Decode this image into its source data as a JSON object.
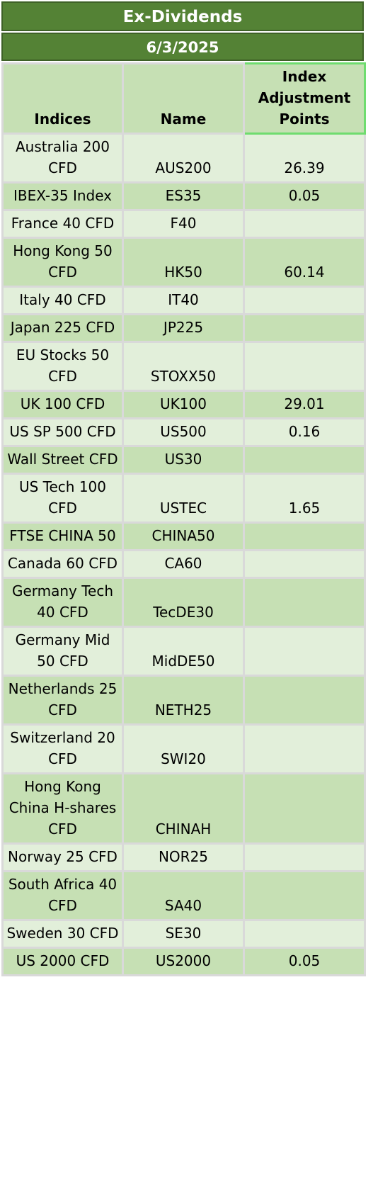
{
  "header": {
    "title": "Ex-Dividends",
    "date": "6/3/2025"
  },
  "columns": {
    "indices": "Indices",
    "name": "Name",
    "adjustment": "Index Adjustment Points"
  },
  "rows": [
    {
      "index": "Australia 200 CFD",
      "name": "AUS200",
      "points": "26.39"
    },
    {
      "index": "IBEX-35 Index",
      "name": "ES35",
      "points": "0.05"
    },
    {
      "index": "France 40 CFD",
      "name": "F40",
      "points": ""
    },
    {
      "index": "Hong Kong 50 CFD",
      "name": "HK50",
      "points": "60.14"
    },
    {
      "index": "Italy 40 CFD",
      "name": "IT40",
      "points": ""
    },
    {
      "index": "Japan 225 CFD",
      "name": "JP225",
      "points": ""
    },
    {
      "index": "EU Stocks 50 CFD",
      "name": "STOXX50",
      "points": ""
    },
    {
      "index": "UK 100 CFD",
      "name": "UK100",
      "points": "29.01"
    },
    {
      "index": "US SP 500 CFD",
      "name": "US500",
      "points": "0.16"
    },
    {
      "index": "Wall Street CFD",
      "name": "US30",
      "points": ""
    },
    {
      "index": "US Tech 100 CFD",
      "name": "USTEC",
      "points": "1.65"
    },
    {
      "index": "FTSE CHINA 50",
      "name": "CHINA50",
      "points": ""
    },
    {
      "index": "Canada 60 CFD",
      "name": "CA60",
      "points": ""
    },
    {
      "index": "Germany Tech 40 CFD",
      "name": "TecDE30",
      "points": ""
    },
    {
      "index": "Germany Mid 50 CFD",
      "name": "MidDE50",
      "points": ""
    },
    {
      "index": "Netherlands 25 CFD",
      "name": "NETH25",
      "points": ""
    },
    {
      "index": "Switzerland 20 CFD",
      "name": "SWI20",
      "points": ""
    },
    {
      "index": "Hong Kong China H-shares CFD",
      "name": "CHINAH",
      "points": ""
    },
    {
      "index": "Norway 25 CFD",
      "name": "NOR25",
      "points": ""
    },
    {
      "index": "South Africa 40 CFD",
      "name": "SA40",
      "points": ""
    },
    {
      "index": "Sweden 30 CFD",
      "name": "SE30",
      "points": ""
    },
    {
      "index": "US 2000 CFD",
      "name": "US2000",
      "points": "0.05"
    }
  ],
  "colors": {
    "banner": "#548235",
    "header_fill": "#c6e0b4",
    "row_light": "#e2efda",
    "row_dark": "#c6e0b4",
    "selected_border": "#6fdc6f"
  }
}
